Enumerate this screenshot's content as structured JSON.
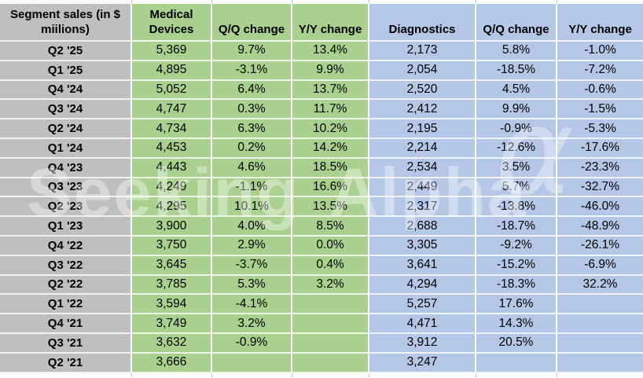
{
  "sheet": {
    "corner_header": "Segment sales (in $ miilions)",
    "column_headers": [
      "Medical Devices",
      "Q/Q change",
      "Y/Y change",
      "Diagnostics",
      "Q/Q change",
      "Y/Y change"
    ],
    "rows": [
      {
        "label": "Q2 '25",
        "values": [
          "5,369",
          "9.7%",
          "13.4%",
          "2,173",
          "5.8%",
          "-1.0%"
        ]
      },
      {
        "label": "Q1 '25",
        "values": [
          "4,895",
          "-3.1%",
          "9.9%",
          "2,054",
          "-18.5%",
          "-7.2%"
        ]
      },
      {
        "label": "Q4 '24",
        "values": [
          "5,052",
          "6.4%",
          "13.7%",
          "2,520",
          "4.5%",
          "-0.6%"
        ]
      },
      {
        "label": "Q3 '24",
        "values": [
          "4,747",
          "0.3%",
          "11.7%",
          "2,412",
          "9.9%",
          "-1.5%"
        ]
      },
      {
        "label": "Q2 '24",
        "values": [
          "4,734",
          "6.3%",
          "10.2%",
          "2,195",
          "-0.9%",
          "-5.3%"
        ]
      },
      {
        "label": "Q1 '24",
        "values": [
          "4,453",
          "0.2%",
          "14.2%",
          "2,214",
          "-12.6%",
          "-17.6%"
        ]
      },
      {
        "label": "Q4 '23",
        "values": [
          "4,443",
          "4.6%",
          "18.5%",
          "2,534",
          "3.5%",
          "-23.3%"
        ]
      },
      {
        "label": "Q3 '23",
        "values": [
          "4,249",
          "-1.1%",
          "16.6%",
          "2,449",
          "5.7%",
          "-32.7%"
        ]
      },
      {
        "label": "Q2 '23",
        "values": [
          "4,295",
          "10.1%",
          "13.5%",
          "2,317",
          "-13.8%",
          "-46.0%"
        ]
      },
      {
        "label": "Q1 '23",
        "values": [
          "3,900",
          "4.0%",
          "8.5%",
          "2,688",
          "-18.7%",
          "-48.9%"
        ]
      },
      {
        "label": "Q4 '22",
        "values": [
          "3,750",
          "2.9%",
          "0.0%",
          "3,305",
          "-9.2%",
          "-26.1%"
        ]
      },
      {
        "label": "Q3 '22",
        "values": [
          "3,645",
          "-3.7%",
          "0.4%",
          "3,641",
          "-15.2%",
          "-6.9%"
        ]
      },
      {
        "label": "Q2 '22",
        "values": [
          "3,785",
          "5.3%",
          "3.2%",
          "4,294",
          "-18.3%",
          "32.2%"
        ]
      },
      {
        "label": "Q1 '22",
        "values": [
          "3,594",
          "-4.1%",
          "",
          "5,257",
          "17.6%",
          ""
        ]
      },
      {
        "label": "Q4 '21",
        "values": [
          "3,749",
          "3.2%",
          "",
          "4,471",
          "14.3%",
          ""
        ]
      },
      {
        "label": "Q3 '21",
        "values": [
          "3,632",
          "-0.9%",
          "",
          "3,912",
          "20.5%",
          ""
        ]
      },
      {
        "label": "Q2 '21",
        "values": [
          "3,666",
          "",
          "",
          "3,247",
          "",
          ""
        ]
      }
    ]
  },
  "watermark": {
    "text": "Seeking Alpha",
    "symbol": "α"
  },
  "colors": {
    "medical_green": "#A9D08E",
    "diagnostics_blue": "#B4C7E7",
    "label_grey": "#BFBFBF"
  }
}
